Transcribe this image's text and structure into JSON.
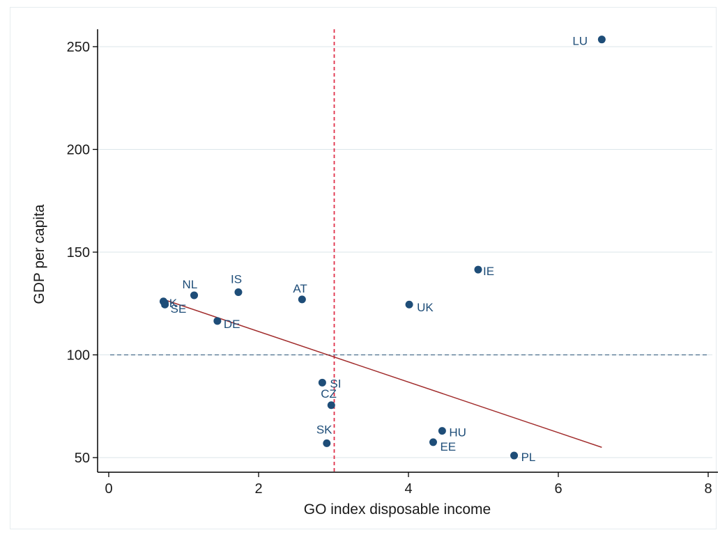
{
  "chart_data": {
    "type": "scatter",
    "title": "",
    "xlabel": "GO index disposable income",
    "ylabel": "GDP per capita",
    "xlim": [
      0,
      8
    ],
    "ylim": [
      50,
      260
    ],
    "xticks": [
      0,
      2,
      4,
      6,
      8
    ],
    "yticks": [
      50,
      100,
      150,
      200,
      250
    ],
    "grid": "horizontal",
    "reference_lines": {
      "x": 3.0,
      "y": 100
    },
    "colors": {
      "points": "#1e4d78",
      "fit_line": "#a12c2c",
      "vline": "#e0304a",
      "hline": "#4a6d8c",
      "grid": "#dbe6ea"
    },
    "points": [
      {
        "label": "LU",
        "x": 6.58,
        "y": 253.5
      },
      {
        "label": "IE",
        "x": 4.93,
        "y": 141.5
      },
      {
        "label": "UK",
        "x": 4.01,
        "y": 124.5
      },
      {
        "label": "NL",
        "x": 1.14,
        "y": 129.0
      },
      {
        "label": "IS",
        "x": 1.73,
        "y": 130.5
      },
      {
        "label": "AT",
        "x": 2.58,
        "y": 127.0
      },
      {
        "label": "DK",
        "x": 0.73,
        "y": 126.0
      },
      {
        "label": "SE",
        "x": 0.75,
        "y": 124.5
      },
      {
        "label": "DE",
        "x": 1.45,
        "y": 116.5
      },
      {
        "label": "SI",
        "x": 2.85,
        "y": 86.5
      },
      {
        "label": "CZ",
        "x": 2.97,
        "y": 75.5
      },
      {
        "label": "SK",
        "x": 2.91,
        "y": 57.0
      },
      {
        "label": "HU",
        "x": 4.45,
        "y": 63.0
      },
      {
        "label": "EE",
        "x": 4.33,
        "y": 57.5
      },
      {
        "label": "PL",
        "x": 5.41,
        "y": 51.0
      }
    ],
    "fit_line": {
      "x": [
        0.73,
        6.58
      ],
      "y": [
        127.0,
        55.0
      ]
    }
  }
}
